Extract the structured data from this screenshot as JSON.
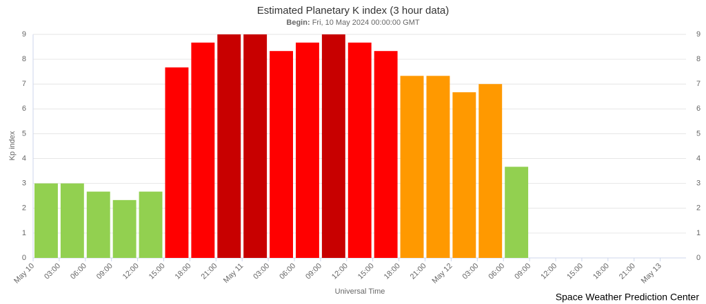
{
  "chart_data": {
    "type": "bar",
    "title": "Estimated Planetary K index (3 hour data)",
    "subtitle_label": "Begin:",
    "subtitle": "Fri, 10 May 2024 00:00:00 GMT",
    "y_label": "Kp index",
    "x_label": "Universal Time",
    "credit": "Space Weather Prediction Center",
    "categories": [
      "May 10",
      "03:00",
      "06:00",
      "09:00",
      "12:00",
      "15:00",
      "18:00",
      "21:00",
      "May 11",
      "03:00",
      "06:00",
      "09:00",
      "12:00",
      "15:00",
      "18:00",
      "21:00",
      "May 12",
      "03:00",
      "06:00",
      "09:00",
      "12:00",
      "15:00",
      "18:00",
      "21:00",
      "May 13"
    ],
    "values": [
      3,
      3,
      2.67,
      2.33,
      2.67,
      7.67,
      8.67,
      9,
      9,
      8.33,
      8.67,
      9,
      8.67,
      8.33,
      7.33,
      7.33,
      6.67,
      7,
      3.67,
      null,
      null,
      null,
      null,
      null,
      null
    ],
    "colors": [
      "#92d050",
      "#92d050",
      "#92d050",
      "#92d050",
      "#92d050",
      "#ff0000",
      "#ff0000",
      "#c80000",
      "#c80000",
      "#ff0000",
      "#ff0000",
      "#c80000",
      "#ff0000",
      "#ff0000",
      "#ff9900",
      "#ff9900",
      "#ff9900",
      "#ff9900",
      "#92d050",
      null,
      null,
      null,
      null,
      null,
      null
    ],
    "ylim": [
      0,
      9
    ],
    "yticks": [
      0,
      1,
      2,
      3,
      4,
      5,
      6,
      7,
      8,
      9
    ],
    "grid": true
  }
}
